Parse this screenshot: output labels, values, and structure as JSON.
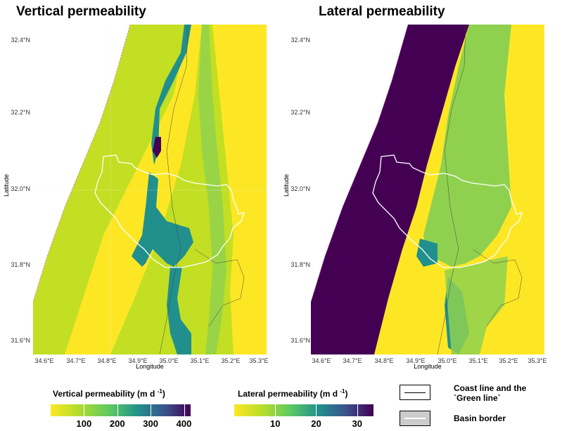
{
  "panels": {
    "left": {
      "title": "Vertical permeability"
    },
    "right": {
      "title": "Lateral permeability"
    }
  },
  "axes": {
    "xlabel": "Longitude",
    "ylabel": "Latitude",
    "xticks": [
      "34.6°E",
      "34.7°E",
      "34.8°E",
      "34.9°E",
      "35.0°E",
      "35.1°E",
      "35.2°E",
      "35.3°E"
    ],
    "yticks": [
      "32.4°N",
      "32.2°N",
      "32.0°N",
      "31.8°N",
      "31.6°N"
    ],
    "xrange": [
      34.55,
      35.35
    ],
    "yrange": [
      31.55,
      32.44
    ]
  },
  "legends": {
    "vertical": {
      "title": "Vertical permeability (m d",
      "unit_exp": "-1",
      "close": ")",
      "ticks": [
        "100",
        "200",
        "300",
        "400"
      ],
      "tick_values": [
        100,
        200,
        300,
        400
      ],
      "range": [
        0,
        420
      ]
    },
    "lateral": {
      "title": "Lateral permeability (m d",
      "unit_exp": "-1",
      "close": ")",
      "ticks": [
        "10",
        "20",
        "30"
      ],
      "tick_values": [
        10,
        20,
        30
      ],
      "range": [
        0,
        34
      ]
    },
    "keys": {
      "coast": "Coast line and the `Green line`",
      "basin": "Basin border"
    }
  },
  "colors": {
    "viridis_dark": "#440154",
    "viridis_teal": "#21908c",
    "viridis_green": "#8fd14f",
    "viridis_lightgreen": "#c2df23",
    "viridis_yellow": "#fde725",
    "map_background": "#ffffff"
  }
}
